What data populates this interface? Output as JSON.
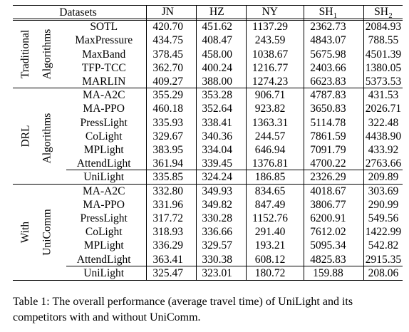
{
  "table": {
    "corner_label": "Datasets",
    "columns": [
      {
        "main": "JN",
        "sub": ""
      },
      {
        "main": "HZ",
        "sub": ""
      },
      {
        "main": "NY",
        "sub": ""
      },
      {
        "main": "SH",
        "sub": "1"
      },
      {
        "main": "SH",
        "sub": "2"
      }
    ],
    "groups": [
      {
        "label_line1": "Traditional",
        "label_line2": "Algorithms",
        "rows": [
          {
            "method": "SOTL",
            "values": [
              "420.70",
              "451.62",
              "1137.29",
              "2362.73",
              "2084.93"
            ],
            "bold": [
              false,
              false,
              false,
              false,
              false
            ]
          },
          {
            "method": "MaxPressure",
            "values": [
              "434.75",
              "408.47",
              "243.59",
              "4843.07",
              "788.55"
            ],
            "bold": [
              false,
              false,
              false,
              false,
              false
            ]
          },
          {
            "method": "MaxBand",
            "values": [
              "378.45",
              "458.00",
              "1038.67",
              "5675.98",
              "4501.39"
            ],
            "bold": [
              false,
              false,
              false,
              false,
              false
            ]
          },
          {
            "method": "TFP-TCC",
            "values": [
              "362.70",
              "400.24",
              "1216.77",
              "2403.66",
              "1380.05"
            ],
            "bold": [
              false,
              false,
              false,
              false,
              false
            ]
          },
          {
            "method": "MARLIN",
            "values": [
              "409.27",
              "388.00",
              "1274.23",
              "6623.83",
              "5373.53"
            ],
            "bold": [
              false,
              false,
              false,
              false,
              false
            ]
          }
        ]
      },
      {
        "label_line1": "DRL",
        "label_line2": "Algorithms",
        "rows": [
          {
            "method": "MA-A2C",
            "values": [
              "355.29",
              "353.28",
              "906.71",
              "4787.83",
              "431.53"
            ],
            "bold": [
              false,
              false,
              false,
              false,
              false
            ]
          },
          {
            "method": "MA-PPO",
            "values": [
              "460.18",
              "352.64",
              "923.82",
              "3650.83",
              "2026.71"
            ],
            "bold": [
              false,
              false,
              false,
              false,
              false
            ]
          },
          {
            "method": "PressLight",
            "values": [
              "335.93",
              "338.41",
              "1363.31",
              "5114.78",
              "322.48"
            ],
            "bold": [
              false,
              false,
              false,
              false,
              false
            ]
          },
          {
            "method": "CoLight",
            "values": [
              "329.67",
              "340.36",
              "244.57",
              "7861.59",
              "4438.90"
            ],
            "bold": [
              false,
              false,
              false,
              false,
              false
            ]
          },
          {
            "method": "MPLight",
            "values": [
              "383.95",
              "334.04",
              "646.94",
              "7091.79",
              "433.92"
            ],
            "bold": [
              false,
              false,
              false,
              false,
              false
            ]
          },
          {
            "method": "AttendLight",
            "values": [
              "361.94",
              "339.45",
              "1376.81",
              "4700.22",
              "2763.66"
            ],
            "bold": [
              false,
              false,
              false,
              false,
              false
            ]
          },
          {
            "method": "UniLight",
            "values": [
              "335.85",
              "324.24",
              "186.85",
              "2326.29",
              "209.89"
            ],
            "bold": [
              false,
              false,
              false,
              false,
              false
            ]
          }
        ]
      },
      {
        "label_line1": "With",
        "label_line2": "UniComm",
        "rows": [
          {
            "method": "MA-A2C",
            "values": [
              "332.80",
              "349.93",
              "834.65",
              "4018.67",
              "303.69"
            ],
            "bold": [
              false,
              false,
              false,
              false,
              false
            ]
          },
          {
            "method": "MA-PPO",
            "values": [
              "331.96",
              "349.82",
              "847.49",
              "3806.77",
              "290.99"
            ],
            "bold": [
              false,
              false,
              false,
              false,
              false
            ]
          },
          {
            "method": "PressLight",
            "values": [
              "317.72",
              "330.28",
              "1152.76",
              "6200.91",
              "549.56"
            ],
            "bold": [
              true,
              false,
              false,
              false,
              false
            ]
          },
          {
            "method": "CoLight",
            "values": [
              "318.93",
              "336.66",
              "291.40",
              "7612.02",
              "1422.99"
            ],
            "bold": [
              false,
              false,
              false,
              false,
              false
            ]
          },
          {
            "method": "MPLight",
            "values": [
              "336.29",
              "329.57",
              "193.21",
              "5095.34",
              "542.82"
            ],
            "bold": [
              false,
              false,
              false,
              false,
              false
            ]
          },
          {
            "method": "AttendLight",
            "values": [
              "363.41",
              "330.38",
              "608.12",
              "4825.83",
              "2915.35"
            ],
            "bold": [
              false,
              false,
              false,
              false,
              false
            ]
          },
          {
            "method": "UniLight",
            "values": [
              "325.47",
              "323.01",
              "180.72",
              "159.88",
              "208.06"
            ],
            "bold": [
              false,
              true,
              true,
              true,
              true
            ]
          }
        ]
      }
    ]
  },
  "caption": "Table 1: The overall performance (average travel time) of UniLight and its competitors with and without UniComm."
}
